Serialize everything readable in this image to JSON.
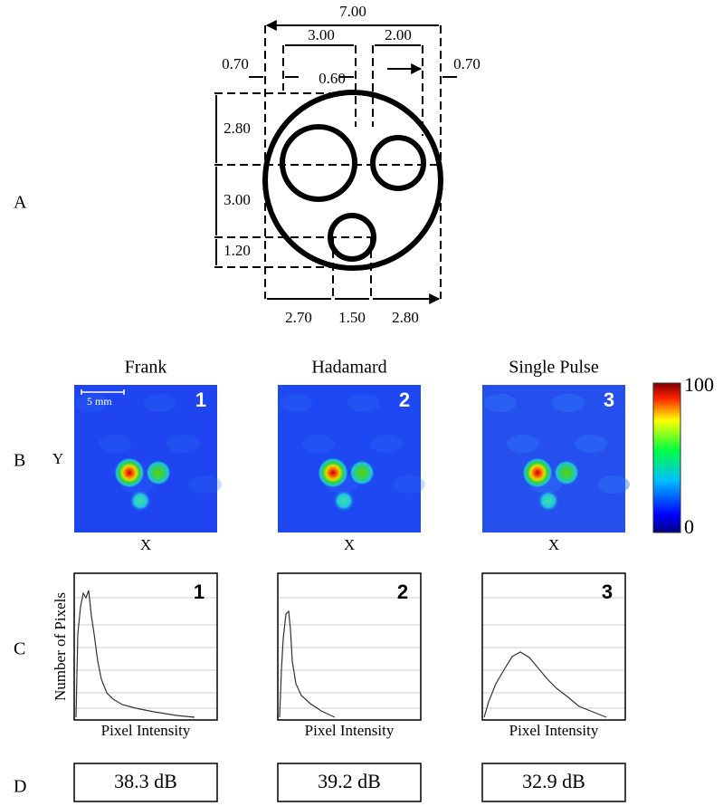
{
  "panel_labels": [
    "A",
    "B",
    "C",
    "D"
  ],
  "diagram": {
    "dimensions": [
      "7.00",
      "3.00",
      "2.00",
      "0.70",
      "0.60",
      "0.70",
      "2.80",
      "3.00",
      "1.20",
      "2.70",
      "1.50",
      "2.80"
    ]
  },
  "images": [
    {
      "title": "Frank",
      "number": "1"
    },
    {
      "title": "Hadamard",
      "number": "2"
    },
    {
      "title": "Single Pulse",
      "number": "3"
    }
  ],
  "scale_bar": "5 mm",
  "axis_x": "X",
  "axis_y": "Y",
  "colorbar": {
    "max": "100",
    "min": "0"
  },
  "histograms": {
    "y_label": "Number of Pixels",
    "x_label": "Pixel Intensity",
    "numbers": [
      "1",
      "2",
      "3"
    ]
  },
  "snr": [
    "38.3 dB",
    "39.2 dB",
    "32.9 dB"
  ]
}
